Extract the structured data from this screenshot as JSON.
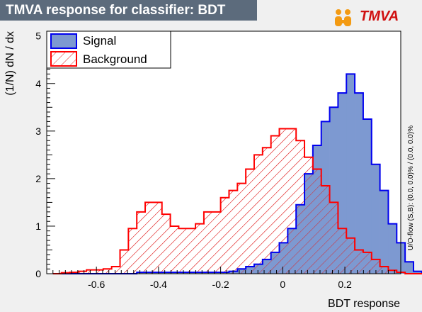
{
  "title": "TMVA response for classifier: BDT",
  "logo_text": "TMVA",
  "side_note": "U/O-flow (S,B): (0.0, 0.0)% / (0.0, 0.0)%",
  "colors": {
    "signal_fill": "#7d99d1",
    "signal_line": "#0000ee",
    "background_line": "#ff0000",
    "title_bg": "#5c6b7c",
    "page_bg": "#f0f0f0"
  },
  "chart_data": {
    "type": "histogram",
    "xlabel": "BDT response",
    "ylabel": "(1/N) dN / dx",
    "xlim": [
      -0.76,
      0.38
    ],
    "ylim": [
      0,
      5.1
    ],
    "xticks": [
      -0.6,
      -0.4,
      -0.2,
      0,
      0.2
    ],
    "xtick_labels": [
      "-0.6",
      "-0.4",
      "-0.2",
      "0",
      "0.2"
    ],
    "yticks": [
      0,
      1,
      2,
      3,
      4,
      5
    ],
    "ytick_labels": [
      "0",
      "1",
      "2",
      "3",
      "4",
      "5"
    ],
    "grid": false,
    "legend_position": "top-left",
    "bin_edges_start": -0.74,
    "bin_width": 0.027,
    "series": [
      {
        "name": "Signal",
        "style": "filled",
        "values": [
          0,
          0,
          0,
          0,
          0,
          0,
          0,
          0,
          0,
          0,
          0.03,
          0.03,
          0.03,
          0.03,
          0.03,
          0.03,
          0.03,
          0.03,
          0.03,
          0.03,
          0.03,
          0.05,
          0.1,
          0.15,
          0.2,
          0.3,
          0.45,
          0.65,
          0.95,
          1.45,
          2.1,
          2.7,
          3.2,
          3.5,
          3.8,
          4.2,
          3.8,
          3.25,
          2.3,
          1.75,
          1.05,
          0.65,
          0.25,
          0.05,
          0
        ]
      },
      {
        "name": "Background",
        "style": "hatched",
        "values": [
          0,
          0.02,
          0.03,
          0.05,
          0.08,
          0.08,
          0.1,
          0.15,
          0.5,
          0.95,
          1.3,
          1.5,
          1.5,
          1.25,
          1.0,
          0.95,
          0.95,
          1.05,
          1.3,
          1.3,
          1.6,
          1.75,
          1.9,
          2.2,
          2.5,
          2.65,
          2.9,
          3.05,
          3.05,
          2.8,
          2.45,
          2.2,
          1.85,
          1.5,
          0.95,
          0.75,
          0.5,
          0.45,
          0.3,
          0.15,
          0.07,
          0.03,
          0,
          0,
          0
        ]
      }
    ]
  }
}
